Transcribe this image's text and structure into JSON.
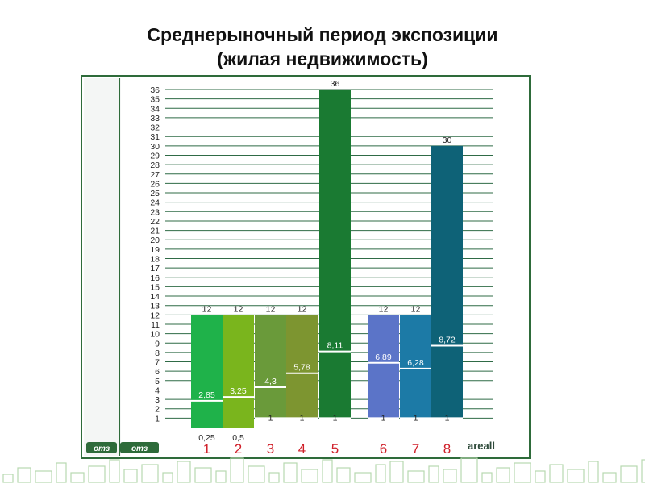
{
  "title_line1": "Среднерыночный период экспозиции",
  "title_line2": "(жилая недвижимость)",
  "colors": {
    "frame": "#2e6b3a",
    "grid": "#2f6b46",
    "axis_text": "#222222",
    "category_text": "#d0202a",
    "bars": [
      "#1fb24a",
      "#7ab51d",
      "#6a9a3a",
      "#7d9530",
      "#1a7a32",
      "#5b74c8",
      "#1c7aa6",
      "#0e6277"
    ]
  },
  "brand": {
    "logo_left": "omз",
    "logo_right": "omз",
    "watermark": "areall"
  },
  "chart_data": {
    "type": "bar",
    "title": "Среднерыночный период экспозиции (жилая недвижимость)",
    "xlabel": "",
    "ylabel": "",
    "ylim": [
      0,
      36
    ],
    "y_ticks": [
      1,
      2,
      3,
      4,
      5,
      6,
      7,
      8,
      9,
      10,
      11,
      12,
      13,
      14,
      15,
      16,
      17,
      18,
      19,
      20,
      21,
      22,
      23,
      24,
      25,
      26,
      27,
      28,
      29,
      30,
      31,
      32,
      33,
      34,
      35,
      36
    ],
    "grid": true,
    "categories": [
      "1",
      "2",
      "3",
      "4",
      "5",
      "6",
      "7",
      "8"
    ],
    "series": [
      {
        "name": "max",
        "values": [
          12,
          12,
          12,
          12,
          36,
          12,
          12,
          30
        ]
      },
      {
        "name": "avg",
        "values": [
          2.85,
          3.25,
          4.3,
          5.78,
          8.11,
          6.89,
          6.28,
          8.72
        ]
      },
      {
        "name": "min",
        "values": [
          0.25,
          0.5,
          1,
          1,
          1,
          1,
          1,
          1
        ]
      }
    ],
    "labels": {
      "max": [
        "12",
        "12",
        "12",
        "12",
        "36",
        "12",
        "12",
        "30"
      ],
      "avg": [
        "2,85",
        "3,25",
        "4,3",
        "5,78",
        "8,11",
        "6,89",
        "6,28",
        "8,72"
      ],
      "min": [
        "0,25",
        "0,5",
        "1",
        "1",
        "1",
        "1",
        "1",
        "1"
      ]
    }
  }
}
